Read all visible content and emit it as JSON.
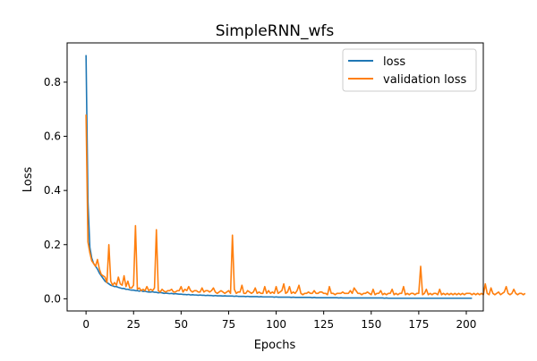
{
  "chart_data": {
    "type": "line",
    "title": "SimpleRNN_wfs",
    "xlabel": "Epochs",
    "ylabel": "Loss",
    "xlim": [
      -9.95,
      208.95
    ],
    "ylim": [
      -0.045,
      0.945
    ],
    "xticks": [
      0,
      25,
      50,
      75,
      100,
      125,
      150,
      175,
      200
    ],
    "yticks": [
      0.0,
      0.2,
      0.4,
      0.6,
      0.8
    ],
    "ytick_labels": [
      "0.0",
      "0.2",
      "0.4",
      "0.6",
      "0.8"
    ],
    "legend_position": "top-right",
    "grid": false,
    "series": [
      {
        "name": "loss",
        "color": "#1f77b4",
        "values": [
          0.9,
          0.36,
          0.19,
          0.15,
          0.13,
          0.12,
          0.11,
          0.095,
          0.085,
          0.075,
          0.065,
          0.06,
          0.055,
          0.05,
          0.048,
          0.045,
          0.045,
          0.042,
          0.04,
          0.038,
          0.038,
          0.035,
          0.035,
          0.033,
          0.032,
          0.032,
          0.03,
          0.03,
          0.028,
          0.03,
          0.027,
          0.028,
          0.026,
          0.025,
          0.025,
          0.026,
          0.024,
          0.024,
          0.022,
          0.023,
          0.022,
          0.02,
          0.021,
          0.02,
          0.019,
          0.02,
          0.018,
          0.019,
          0.018,
          0.017,
          0.017,
          0.016,
          0.016,
          0.015,
          0.016,
          0.014,
          0.015,
          0.014,
          0.014,
          0.013,
          0.014,
          0.013,
          0.013,
          0.012,
          0.013,
          0.012,
          0.012,
          0.011,
          0.012,
          0.011,
          0.011,
          0.011,
          0.01,
          0.011,
          0.01,
          0.01,
          0.01,
          0.01,
          0.009,
          0.01,
          0.009,
          0.009,
          0.009,
          0.009,
          0.008,
          0.009,
          0.008,
          0.008,
          0.008,
          0.008,
          0.008,
          0.007,
          0.008,
          0.007,
          0.007,
          0.007,
          0.007,
          0.007,
          0.007,
          0.006,
          0.007,
          0.006,
          0.006,
          0.006,
          0.006,
          0.006,
          0.006,
          0.006,
          0.005,
          0.006,
          0.005,
          0.005,
          0.005,
          0.005,
          0.005,
          0.005,
          0.005,
          0.005,
          0.005,
          0.004,
          0.005,
          0.004,
          0.004,
          0.004,
          0.004,
          0.004,
          0.004,
          0.004,
          0.004,
          0.004,
          0.004,
          0.004,
          0.004,
          0.003,
          0.004,
          0.003,
          0.003,
          0.003,
          0.003,
          0.003,
          0.003,
          0.003,
          0.003,
          0.003,
          0.003,
          0.003,
          0.003,
          0.003,
          0.003,
          0.003,
          0.003,
          0.003,
          0.003,
          0.003,
          0.003,
          0.003,
          0.003,
          0.002,
          0.003,
          0.002,
          0.002,
          0.002,
          0.002,
          0.002,
          0.002,
          0.002,
          0.002,
          0.002,
          0.002,
          0.002,
          0.002,
          0.002,
          0.002,
          0.002,
          0.002,
          0.002,
          0.002,
          0.002,
          0.002,
          0.002,
          0.002,
          0.002,
          0.002,
          0.002,
          0.002,
          0.002,
          0.002,
          0.002,
          0.002,
          0.002,
          0.002,
          0.002,
          0.002,
          0.002,
          0.002,
          0.002,
          0.002,
          0.002,
          0.002,
          0.002,
          0.002,
          0.002,
          0.002,
          0.002
        ]
      },
      {
        "name": "validation loss",
        "color": "#ff7f0e",
        "values": [
          0.68,
          0.21,
          0.17,
          0.14,
          0.13,
          0.12,
          0.145,
          0.11,
          0.09,
          0.085,
          0.08,
          0.06,
          0.2,
          0.065,
          0.05,
          0.06,
          0.05,
          0.08,
          0.055,
          0.05,
          0.085,
          0.045,
          0.065,
          0.04,
          0.04,
          0.05,
          0.27,
          0.035,
          0.04,
          0.03,
          0.035,
          0.03,
          0.045,
          0.03,
          0.035,
          0.03,
          0.04,
          0.255,
          0.03,
          0.025,
          0.035,
          0.028,
          0.025,
          0.03,
          0.03,
          0.035,
          0.025,
          0.025,
          0.03,
          0.03,
          0.045,
          0.025,
          0.035,
          0.03,
          0.045,
          0.03,
          0.025,
          0.03,
          0.03,
          0.025,
          0.025,
          0.04,
          0.025,
          0.03,
          0.03,
          0.025,
          0.03,
          0.04,
          0.025,
          0.02,
          0.025,
          0.03,
          0.025,
          0.02,
          0.025,
          0.03,
          0.02,
          0.235,
          0.035,
          0.02,
          0.025,
          0.025,
          0.05,
          0.02,
          0.02,
          0.03,
          0.025,
          0.02,
          0.025,
          0.04,
          0.02,
          0.025,
          0.02,
          0.02,
          0.045,
          0.02,
          0.03,
          0.02,
          0.025,
          0.02,
          0.045,
          0.02,
          0.025,
          0.03,
          0.055,
          0.02,
          0.025,
          0.045,
          0.02,
          0.025,
          0.02,
          0.03,
          0.05,
          0.02,
          0.015,
          0.02,
          0.02,
          0.025,
          0.02,
          0.02,
          0.03,
          0.02,
          0.02,
          0.025,
          0.025,
          0.02,
          0.02,
          0.015,
          0.045,
          0.02,
          0.02,
          0.015,
          0.02,
          0.02,
          0.02,
          0.025,
          0.02,
          0.02,
          0.02,
          0.03,
          0.02,
          0.04,
          0.03,
          0.02,
          0.02,
          0.015,
          0.02,
          0.02,
          0.025,
          0.02,
          0.015,
          0.035,
          0.015,
          0.02,
          0.02,
          0.03,
          0.015,
          0.02,
          0.015,
          0.02,
          0.02,
          0.035,
          0.015,
          0.02,
          0.015,
          0.02,
          0.02,
          0.045,
          0.015,
          0.02,
          0.015,
          0.02,
          0.02,
          0.015,
          0.02,
          0.02,
          0.12,
          0.015,
          0.02,
          0.035,
          0.015,
          0.02,
          0.015,
          0.02,
          0.02,
          0.015,
          0.035,
          0.015,
          0.02,
          0.015,
          0.02,
          0.015,
          0.02,
          0.015,
          0.02,
          0.015,
          0.02,
          0.015,
          0.02,
          0.015,
          0.02,
          0.02,
          0.02,
          0.015,
          0.02,
          0.015,
          0.02,
          0.015,
          0.02,
          0.015,
          0.055,
          0.02,
          0.015,
          0.04,
          0.02,
          0.015,
          0.02,
          0.025,
          0.015,
          0.02,
          0.025,
          0.045,
          0.02,
          0.015,
          0.02,
          0.035,
          0.02,
          0.015,
          0.02,
          0.02,
          0.015,
          0.02
        ]
      }
    ]
  }
}
